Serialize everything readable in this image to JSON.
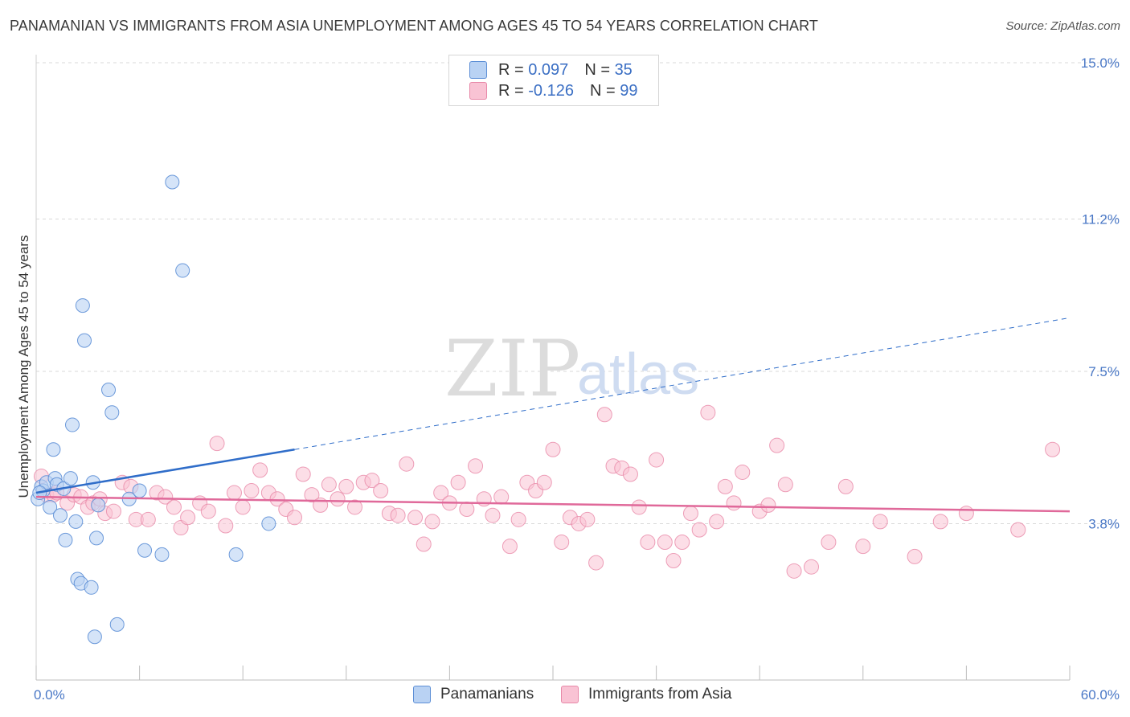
{
  "title": "PANAMANIAN VS IMMIGRANTS FROM ASIA UNEMPLOYMENT AMONG AGES 45 TO 54 YEARS CORRELATION CHART",
  "source": "Source: ZipAtlas.com",
  "watermark": {
    "zip": "ZIP",
    "atlas": "atlas"
  },
  "colors": {
    "blue_fill": "#b9d2f3",
    "blue_stroke": "#5d8fd6",
    "blue_line": "#2f6dc9",
    "pink_fill": "#f9c3d4",
    "pink_stroke": "#e888a8",
    "pink_line": "#e0699a",
    "tick_text": "#4a78c6",
    "grid": "#d9d9d9"
  },
  "legend": {
    "rows": [
      {
        "r_label": "R =",
        "r_value": "0.097",
        "n_label": "N =",
        "n_value": "35"
      },
      {
        "r_label": "R =",
        "r_value": "-0.126",
        "n_label": "N =",
        "n_value": "99"
      }
    ]
  },
  "chart_data": {
    "type": "scatter",
    "title": "PANAMANIAN VS IMMIGRANTS FROM ASIA UNEMPLOYMENT AMONG AGES 45 TO 54 YEARS CORRELATION CHART",
    "xlabel": "",
    "ylabel": "Unemployment Among Ages 45 to 54 years",
    "xlim": [
      0,
      60
    ],
    "ylim": [
      0,
      15.5
    ],
    "x_tick_labels": [
      "0.0%",
      "60.0%"
    ],
    "y_ticks": [
      3.8,
      7.5,
      11.2,
      15.0
    ],
    "y_tick_labels": [
      "3.8%",
      "7.5%",
      "11.2%",
      "15.0%"
    ],
    "legend_position": "top-center",
    "series": [
      {
        "name": "Panamanians",
        "points": [
          [
            0.1,
            4.4
          ],
          [
            0.3,
            4.7
          ],
          [
            0.4,
            4.6
          ],
          [
            0.6,
            4.8
          ],
          [
            0.8,
            4.2
          ],
          [
            1.0,
            5.6
          ],
          [
            1.1,
            4.9
          ],
          [
            1.2,
            4.75
          ],
          [
            1.4,
            4.0
          ],
          [
            1.6,
            4.65
          ],
          [
            1.7,
            3.4
          ],
          [
            2.0,
            4.9
          ],
          [
            2.1,
            6.2
          ],
          [
            2.3,
            3.85
          ],
          [
            2.4,
            2.45
          ],
          [
            2.6,
            2.35
          ],
          [
            2.7,
            9.1
          ],
          [
            2.8,
            8.25
          ],
          [
            3.2,
            2.25
          ],
          [
            3.3,
            4.8
          ],
          [
            3.4,
            1.05
          ],
          [
            3.5,
            3.45
          ],
          [
            3.6,
            4.25
          ],
          [
            4.2,
            7.05
          ],
          [
            4.4,
            6.5
          ],
          [
            4.7,
            1.35
          ],
          [
            5.4,
            4.4
          ],
          [
            6.0,
            4.6
          ],
          [
            6.3,
            3.15
          ],
          [
            7.3,
            3.05
          ],
          [
            7.9,
            12.1
          ],
          [
            8.5,
            9.95
          ],
          [
            11.6,
            3.05
          ],
          [
            13.5,
            3.8
          ],
          [
            0.2,
            4.55
          ]
        ],
        "trend": {
          "solid": [
            [
              0,
              4.55
            ],
            [
              15,
              5.6
            ]
          ],
          "dashed": [
            [
              15,
              5.6
            ],
            [
              60,
              8.8
            ]
          ]
        }
      },
      {
        "name": "Immigrants from Asia",
        "points": [
          [
            0.3,
            4.95
          ],
          [
            0.6,
            4.5
          ],
          [
            1.0,
            4.5
          ],
          [
            1.2,
            4.55
          ],
          [
            1.8,
            4.3
          ],
          [
            2.2,
            4.5
          ],
          [
            2.6,
            4.45
          ],
          [
            3.0,
            4.2
          ],
          [
            3.3,
            4.3
          ],
          [
            3.7,
            4.4
          ],
          [
            4.0,
            4.05
          ],
          [
            4.5,
            4.1
          ],
          [
            5.0,
            4.8
          ],
          [
            5.5,
            4.7
          ],
          [
            5.8,
            3.9
          ],
          [
            6.5,
            3.9
          ],
          [
            7.0,
            4.55
          ],
          [
            7.5,
            4.45
          ],
          [
            8.0,
            4.2
          ],
          [
            8.4,
            3.7
          ],
          [
            8.8,
            3.95
          ],
          [
            9.5,
            4.3
          ],
          [
            10.0,
            4.1
          ],
          [
            10.5,
            5.75
          ],
          [
            11.0,
            3.75
          ],
          [
            11.5,
            4.55
          ],
          [
            12.0,
            4.2
          ],
          [
            12.5,
            4.6
          ],
          [
            13.0,
            5.1
          ],
          [
            13.5,
            4.55
          ],
          [
            14.0,
            4.4
          ],
          [
            14.5,
            4.15
          ],
          [
            15.0,
            3.95
          ],
          [
            15.5,
            5.0
          ],
          [
            16.0,
            4.5
          ],
          [
            16.5,
            4.25
          ],
          [
            17.0,
            4.75
          ],
          [
            17.5,
            4.4
          ],
          [
            18.0,
            4.7
          ],
          [
            18.5,
            4.2
          ],
          [
            19.0,
            4.8
          ],
          [
            19.5,
            4.85
          ],
          [
            20.0,
            4.6
          ],
          [
            20.5,
            4.05
          ],
          [
            21.0,
            4.0
          ],
          [
            21.5,
            5.25
          ],
          [
            22.0,
            3.95
          ],
          [
            22.5,
            3.3
          ],
          [
            23.0,
            3.85
          ],
          [
            23.5,
            4.55
          ],
          [
            24.0,
            4.3
          ],
          [
            24.5,
            4.8
          ],
          [
            25.0,
            4.15
          ],
          [
            25.5,
            5.2
          ],
          [
            26.0,
            4.4
          ],
          [
            26.5,
            4.0
          ],
          [
            27.0,
            4.45
          ],
          [
            27.5,
            3.25
          ],
          [
            28.0,
            3.9
          ],
          [
            28.5,
            4.8
          ],
          [
            29.0,
            4.6
          ],
          [
            29.5,
            4.8
          ],
          [
            30.0,
            5.6
          ],
          [
            30.5,
            3.35
          ],
          [
            31.0,
            3.95
          ],
          [
            31.5,
            3.8
          ],
          [
            32.0,
            3.9
          ],
          [
            32.5,
            2.85
          ],
          [
            33.0,
            6.45
          ],
          [
            33.5,
            5.2
          ],
          [
            34.0,
            5.15
          ],
          [
            34.5,
            5.0
          ],
          [
            35.0,
            4.2
          ],
          [
            35.5,
            3.35
          ],
          [
            36.0,
            5.35
          ],
          [
            36.5,
            3.35
          ],
          [
            37.0,
            2.9
          ],
          [
            37.5,
            3.35
          ],
          [
            38.0,
            4.05
          ],
          [
            38.5,
            3.65
          ],
          [
            39.0,
            6.5
          ],
          [
            39.5,
            3.85
          ],
          [
            40.0,
            4.7
          ],
          [
            40.5,
            4.3
          ],
          [
            41.0,
            5.05
          ],
          [
            42.0,
            4.1
          ],
          [
            42.5,
            4.25
          ],
          [
            43.0,
            5.7
          ],
          [
            43.5,
            4.75
          ],
          [
            44.0,
            2.65
          ],
          [
            45.0,
            2.75
          ],
          [
            46.0,
            3.35
          ],
          [
            47.0,
            4.7
          ],
          [
            48.0,
            3.25
          ],
          [
            49.0,
            3.85
          ],
          [
            51.0,
            3.0
          ],
          [
            52.5,
            3.85
          ],
          [
            54.0,
            4.05
          ],
          [
            57.0,
            3.65
          ],
          [
            59.0,
            5.6
          ]
        ],
        "trend": {
          "solid": [
            [
              0,
              4.45
            ],
            [
              60,
              4.1
            ]
          ]
        }
      }
    ]
  }
}
